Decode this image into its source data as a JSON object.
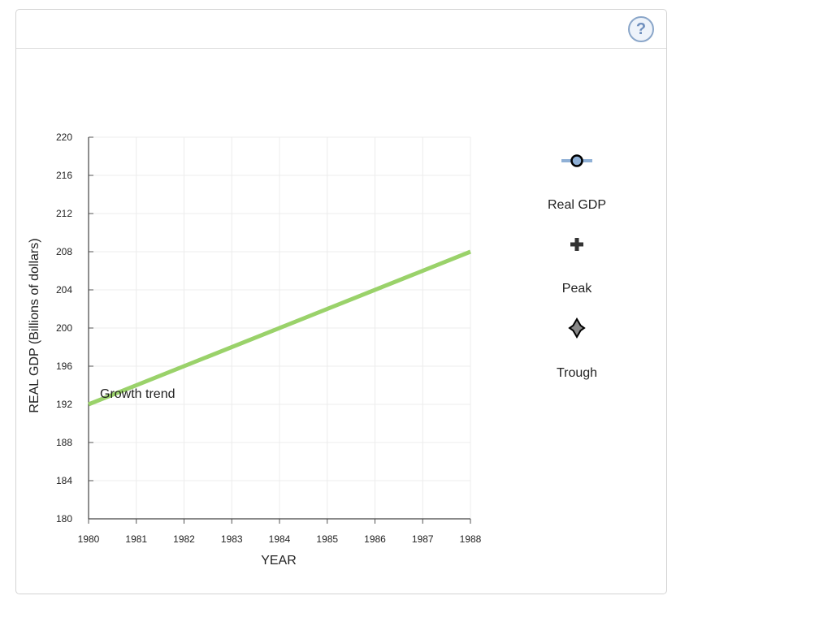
{
  "help": {
    "label": "?",
    "icon": "help-icon"
  },
  "chart_data": {
    "type": "line",
    "xlabel": "YEAR",
    "ylabel": "REAL GDP (Billions of dollars)",
    "xlim": [
      1980,
      1988
    ],
    "ylim": [
      180,
      220
    ],
    "x_ticks": [
      "1980",
      "1981",
      "1982",
      "1983",
      "1984",
      "1985",
      "1986",
      "1987",
      "1988"
    ],
    "y_ticks": [
      "180",
      "184",
      "188",
      "192",
      "196",
      "200",
      "204",
      "208",
      "212",
      "216",
      "220"
    ],
    "grid": true,
    "series": [
      {
        "name": "Growth trend",
        "color": "#9ad26a",
        "x": [
          1980,
          1988
        ],
        "y": [
          192,
          208
        ]
      }
    ],
    "annotations": [
      {
        "text": "Growth trend"
      }
    ],
    "legend": {
      "placement": "right",
      "items": [
        {
          "label": "Real GDP",
          "icon": "real-gdp-marker-icon",
          "color": "#8fb0d6"
        },
        {
          "label": "Peak",
          "icon": "plus-icon",
          "color": "#333333"
        },
        {
          "label": "Trough",
          "icon": "star-icon",
          "color": "#333333"
        }
      ]
    }
  }
}
